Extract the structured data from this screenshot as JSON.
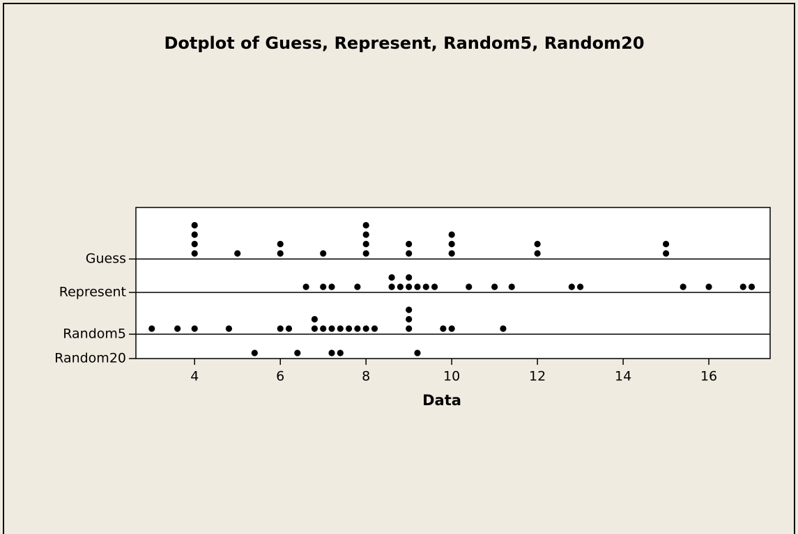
{
  "chart_data": {
    "type": "dotplot",
    "title": "Dotplot of Guess, Represent, Random5, Random20",
    "x_label": "Data",
    "xlim": [
      2.63,
      17.43
    ],
    "xticks": [
      4,
      6,
      8,
      10,
      12,
      14,
      16
    ],
    "color": "#000000",
    "series": [
      {
        "name": "Guess",
        "values": [
          4,
          4,
          4,
          4,
          5,
          6,
          6,
          7,
          8,
          8,
          8,
          8,
          9,
          9,
          10,
          10,
          10,
          12,
          12,
          15,
          15
        ]
      },
      {
        "name": "Represent",
        "values": [
          6.6,
          7,
          7.2,
          7.8,
          8.6,
          8.6,
          8.8,
          9,
          9,
          9.2,
          9.4,
          9.6,
          10.4,
          11,
          11.4,
          12.8,
          13,
          15.4,
          16,
          16.8,
          17
        ]
      },
      {
        "name": "Random5",
        "values": [
          3,
          3.6,
          4,
          4.8,
          6,
          6.2,
          6.8,
          6.8,
          7,
          7.2,
          7.4,
          7.6,
          7.8,
          8,
          8.2,
          9,
          9,
          9,
          9.8,
          10,
          11.2
        ]
      },
      {
        "name": "Random20",
        "values": [
          5.4,
          6.4,
          7.2,
          7.4,
          9.2
        ]
      }
    ]
  }
}
